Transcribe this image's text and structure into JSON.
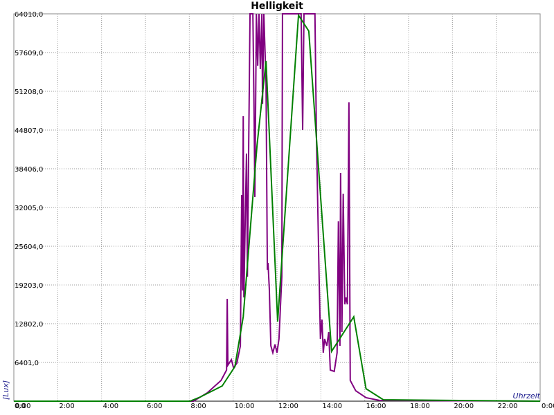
{
  "chart_data": {
    "type": "line",
    "title": "Helligkeit",
    "x_label": "Uhrzeit",
    "y_label": "[Lux]",
    "xlim": [
      0,
      24
    ],
    "ylim": [
      0,
      64010
    ],
    "grid": true,
    "xticks": [
      {
        "value": 0,
        "label": "0:00"
      },
      {
        "value": 2,
        "label": "2:00"
      },
      {
        "value": 4,
        "label": "4:00"
      },
      {
        "value": 6,
        "label": "6:00"
      },
      {
        "value": 8,
        "label": "8:00"
      },
      {
        "value": 10,
        "label": "10:00"
      },
      {
        "value": 12,
        "label": "12:00"
      },
      {
        "value": 14,
        "label": "14:00"
      },
      {
        "value": 16,
        "label": "16:00"
      },
      {
        "value": 18,
        "label": "18:00"
      },
      {
        "value": 20,
        "label": "20:00"
      },
      {
        "value": 22,
        "label": "22:00"
      },
      {
        "value": 24,
        "label": "0:00"
      }
    ],
    "yticks": [
      {
        "value": 0,
        "label": "0,0"
      },
      {
        "value": 6401,
        "label": "6401,0"
      },
      {
        "value": 12802,
        "label": "12802,0"
      },
      {
        "value": 19203,
        "label": "19203,0"
      },
      {
        "value": 25604,
        "label": "25604,0"
      },
      {
        "value": 32005,
        "label": "32005,0"
      },
      {
        "value": 38406,
        "label": "38406,0"
      },
      {
        "value": 44807,
        "label": "44807,0"
      },
      {
        "value": 51208,
        "label": "51208,0"
      },
      {
        "value": 57609,
        "label": "57609,0"
      },
      {
        "value": 64010,
        "label": "64010,0"
      }
    ],
    "series": [
      {
        "color": "#800080",
        "x": [
          0,
          8.19,
          8.82,
          9.45,
          9.7,
          9.73,
          9.76,
          9.92,
          10.02,
          10.17,
          10.33,
          10.39,
          10.43,
          10.46,
          10.49,
          10.55,
          10.61,
          10.65,
          10.71,
          10.77,
          10.9,
          10.96,
          10.99,
          11.06,
          11.12,
          11.18,
          11.24,
          11.31,
          11.34,
          11.4,
          11.5,
          11.56,
          11.59,
          11.65,
          11.72,
          11.81,
          11.91,
          12.0,
          12.09,
          12.22,
          12.25,
          13.1,
          13.17,
          13.23,
          13.73,
          13.8,
          13.92,
          13.98,
          14.05,
          14.11,
          14.17,
          14.27,
          14.36,
          14.43,
          14.61,
          14.74,
          14.8,
          14.87,
          14.9,
          14.96,
          15.02,
          15.09,
          15.15,
          15.21,
          15.28,
          15.34,
          15.59,
          16.06,
          16.69,
          24
        ],
        "values": [
          0,
          0,
          1372,
          3429,
          5144,
          16916,
          5944,
          6858,
          5486,
          6287,
          9144,
          34061,
          18288,
          47092,
          17145,
          29718,
          40919,
          20574,
          42291,
          64010,
          64010,
          45949,
          33719,
          64010,
          55436,
          64010,
          54864,
          64010,
          49149,
          64010,
          52578,
          21717,
          22860,
          18517,
          9144,
          8001,
          9373,
          8001,
          10287,
          20574,
          64010,
          64010,
          44806,
          64010,
          64010,
          43434,
          20574,
          10287,
          13488,
          8001,
          10287,
          9144,
          11430,
          5144,
          4915,
          8001,
          29718,
          9144,
          37719,
          11430,
          34290,
          16002,
          17145,
          16002,
          49378,
          3429,
          1715,
          572,
          114,
          0
        ]
      },
      {
        "color": "#008000",
        "x": [
          0,
          8.03,
          8.5,
          9.5,
          10.08,
          10.46,
          11.09,
          11.5,
          12.03,
          12.98,
          13.45,
          14.49,
          15.5,
          16.06,
          16.85,
          24
        ],
        "values": [
          0,
          0,
          686,
          2515,
          5715,
          13945,
          42291,
          56236,
          13145,
          63779,
          61151,
          8230,
          13945,
          2057,
          229,
          0
        ]
      }
    ]
  }
}
